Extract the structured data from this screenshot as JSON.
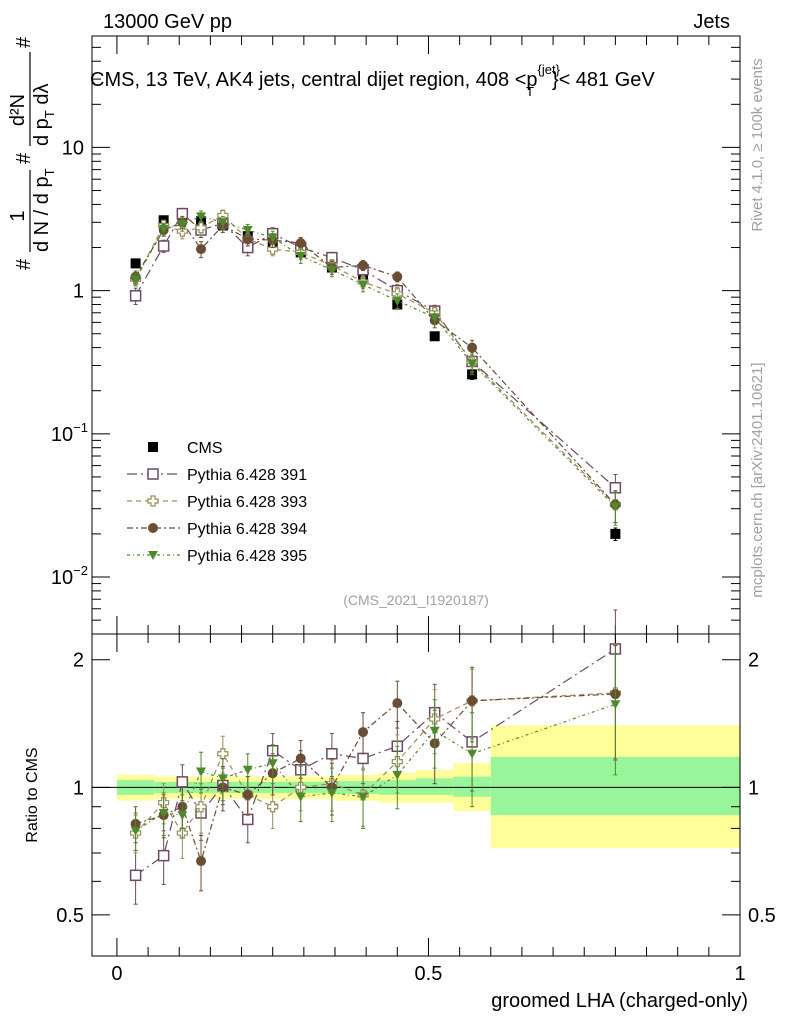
{
  "header": {
    "left": "13000 GeV pp",
    "right": "Jets"
  },
  "side_labels": {
    "rivet": "Rivet 4.1.0, ≥ 100k events",
    "mcplots": "mcplots.cern.ch [arXiv:2401.10621]"
  },
  "chart_data": [
    {
      "type": "scatter",
      "panel": "main",
      "title": "CMS, 13 TeV, AK4 jets, central dijet region, 408 < p_T^{jet} < 481 GeV",
      "title_parts": {
        "pre": "CMS, 13 TeV, AK4 jets, central dijet region, 408 <",
        "p": "p",
        "sup": "{jet}",
        "sub": "T",
        "post": "}< 481 GeV"
      },
      "ylabel_parts": {
        "hash": "#",
        "num1": "1",
        "den1": "d N / d p",
        "den1_sub": "T",
        "hash2": "#",
        "num2": "d²N",
        "den2": "d p",
        "den2_sub": "T",
        "den2_post": " dλ",
        "hash3": "#"
      },
      "yscale": "log",
      "ylim": [
        0.004,
        60
      ],
      "xlim": [
        -0.04,
        1.0
      ],
      "y_ticks": [
        {
          "value": 0.01,
          "base": "10",
          "exp": "−2"
        },
        {
          "value": 0.1,
          "base": "10",
          "exp": "−1"
        },
        {
          "value": 1,
          "label": "1"
        },
        {
          "value": 10,
          "label": "10"
        }
      ],
      "watermark": "(CMS_2021_I1920187)",
      "legend_position": "lower-left",
      "x": [
        0.03,
        0.075,
        0.105,
        0.135,
        0.17,
        0.21,
        0.25,
        0.295,
        0.345,
        0.395,
        0.45,
        0.51,
        0.57,
        0.8
      ],
      "series": [
        {
          "name": "CMS",
          "marker": "square-filled",
          "color": "#000000",
          "values": [
            1.55,
            3.1,
            3.35,
            3.05,
            2.85,
            2.4,
            2.05,
            1.85,
            1.45,
            1.2,
            0.8,
            0.48,
            0.26,
            0.02
          ],
          "errors": [
            0.05,
            0.08,
            0.08,
            0.08,
            0.07,
            0.07,
            0.06,
            0.05,
            0.04,
            0.04,
            0.03,
            0.03,
            0.02,
            0.002
          ]
        },
        {
          "name": "Pythia 6.428 391",
          "marker": "square-open",
          "color": "#6b4a62",
          "values": [
            0.92,
            2.05,
            3.45,
            2.65,
            2.95,
            2.0,
            2.5,
            2.0,
            1.7,
            1.4,
            1.0,
            0.72,
            0.32,
            0.042
          ],
          "errors": [
            0.12,
            0.2,
            0.3,
            0.3,
            0.3,
            0.25,
            0.25,
            0.2,
            0.15,
            0.12,
            0.1,
            0.07,
            0.05,
            0.01
          ]
        },
        {
          "name": "Pythia 6.428 393",
          "marker": "cross-open",
          "color": "#9a8c5a",
          "values": [
            1.2,
            2.85,
            2.6,
            2.75,
            3.35,
            2.3,
            1.95,
            1.85,
            1.5,
            1.15,
            0.95,
            0.7,
            0.32,
            0.032
          ],
          "errors": [
            0.12,
            0.25,
            0.3,
            0.3,
            0.3,
            0.25,
            0.2,
            0.2,
            0.15,
            0.12,
            0.1,
            0.07,
            0.05,
            0.008
          ]
        },
        {
          "name": "Pythia 6.428 394",
          "marker": "circle-filled",
          "color": "#6b4c34",
          "values": [
            1.25,
            2.65,
            3.0,
            1.95,
            2.85,
            2.3,
            2.25,
            2.15,
            1.45,
            1.5,
            1.25,
            0.62,
            0.4,
            0.032
          ],
          "errors": [
            0.12,
            0.25,
            0.3,
            0.25,
            0.3,
            0.25,
            0.25,
            0.2,
            0.15,
            0.12,
            0.1,
            0.07,
            0.05,
            0.008
          ]
        },
        {
          "name": "Pythia 6.428 395",
          "marker": "triangle-down-filled",
          "color": "#4f8a2a",
          "values": [
            1.2,
            2.7,
            2.9,
            3.3,
            3.0,
            2.65,
            2.35,
            1.75,
            1.4,
            1.1,
            0.85,
            0.65,
            0.31,
            0.031
          ],
          "errors": [
            0.12,
            0.25,
            0.3,
            0.3,
            0.3,
            0.25,
            0.25,
            0.2,
            0.15,
            0.12,
            0.1,
            0.07,
            0.05,
            0.008
          ]
        }
      ]
    },
    {
      "type": "scatter",
      "panel": "ratio",
      "ylabel": "Ratio to CMS",
      "xlabel": "groomed LHA (charged-only)",
      "yscale": "log",
      "ylim": [
        0.4,
        2.3
      ],
      "xlim": [
        -0.04,
        1.0
      ],
      "reference_line": 1,
      "y_ticks": [
        {
          "value": 0.5,
          "label": "0.5"
        },
        {
          "value": 1,
          "label": "1"
        },
        {
          "value": 2,
          "label": "2"
        }
      ],
      "x_ticks": [
        {
          "value": 0,
          "label": "0"
        },
        {
          "value": 0.5,
          "label": "0.5"
        },
        {
          "value": 1,
          "label": "1"
        }
      ],
      "bands": [
        {
          "x0": 0.0,
          "x1": 0.06,
          "yellow": [
            0.93,
            1.07
          ],
          "green": [
            0.96,
            1.04
          ]
        },
        {
          "x0": 0.06,
          "x1": 0.35,
          "yellow": [
            0.94,
            1.06
          ],
          "green": [
            0.97,
            1.03
          ]
        },
        {
          "x0": 0.35,
          "x1": 0.42,
          "yellow": [
            0.93,
            1.07
          ],
          "green": [
            0.965,
            1.035
          ]
        },
        {
          "x0": 0.42,
          "x1": 0.48,
          "yellow": [
            0.92,
            1.08
          ],
          "green": [
            0.96,
            1.04
          ]
        },
        {
          "x0": 0.48,
          "x1": 0.54,
          "yellow": [
            0.92,
            1.1
          ],
          "green": [
            0.96,
            1.05
          ]
        },
        {
          "x0": 0.54,
          "x1": 0.6,
          "yellow": [
            0.88,
            1.14
          ],
          "green": [
            0.95,
            1.06
          ]
        },
        {
          "x0": 0.6,
          "x1": 1.0,
          "yellow": [
            0.72,
            1.4
          ],
          "green": [
            0.86,
            1.18
          ]
        }
      ],
      "x": [
        0.03,
        0.075,
        0.105,
        0.135,
        0.17,
        0.21,
        0.25,
        0.295,
        0.345,
        0.395,
        0.45,
        0.51,
        0.57,
        0.8
      ],
      "series": [
        {
          "name": "Pythia 6.428 391",
          "marker": "square-open",
          "color": "#6b4a62",
          "values": [
            0.62,
            0.69,
            1.03,
            0.87,
            1.01,
            0.84,
            1.22,
            1.1,
            1.2,
            1.17,
            1.25,
            1.5,
            1.28,
            2.12
          ],
          "errors": [
            0.09,
            0.1,
            0.1,
            0.12,
            0.1,
            0.1,
            0.12,
            0.12,
            0.14,
            0.15,
            0.18,
            0.25,
            0.3,
            0.5
          ]
        },
        {
          "name": "Pythia 6.428 393",
          "marker": "cross-open",
          "color": "#9a8c5a",
          "values": [
            0.78,
            0.92,
            0.78,
            0.9,
            1.2,
            0.96,
            0.9,
            1.0,
            1.02,
            0.96,
            1.15,
            1.45,
            1.6,
            1.67
          ],
          "errors": [
            0.08,
            0.1,
            0.1,
            0.12,
            0.12,
            0.1,
            0.1,
            0.12,
            0.14,
            0.15,
            0.18,
            0.25,
            0.3,
            0.5
          ]
        },
        {
          "name": "Pythia 6.428 394",
          "marker": "circle-filled",
          "color": "#6b4c34",
          "values": [
            0.82,
            0.86,
            0.9,
            0.67,
            1.0,
            0.96,
            1.08,
            1.17,
            1.0,
            1.35,
            1.58,
            1.27,
            1.6,
            1.66
          ],
          "errors": [
            0.08,
            0.1,
            0.1,
            0.1,
            0.12,
            0.1,
            0.12,
            0.12,
            0.14,
            0.15,
            0.2,
            0.25,
            0.32,
            0.5
          ]
        },
        {
          "name": "Pythia 6.428 395",
          "marker": "triangle-down-filled",
          "color": "#4f8a2a",
          "values": [
            0.79,
            0.87,
            0.86,
            1.09,
            1.05,
            1.1,
            1.14,
            0.95,
            0.97,
            0.95,
            1.07,
            1.36,
            1.2,
            1.57
          ],
          "errors": [
            0.08,
            0.1,
            0.1,
            0.12,
            0.12,
            0.1,
            0.12,
            0.12,
            0.14,
            0.15,
            0.18,
            0.25,
            0.3,
            0.5
          ]
        }
      ]
    }
  ]
}
